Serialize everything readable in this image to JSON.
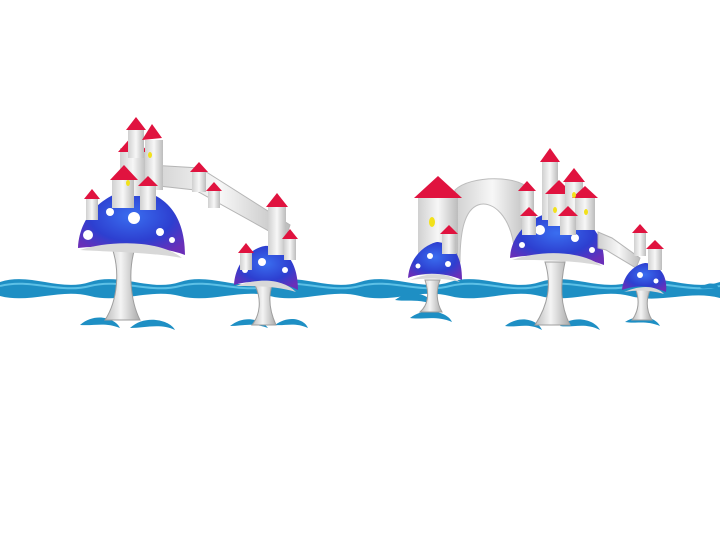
{
  "scene": {
    "description_label": "",
    "colors": {
      "background": "#ffffff",
      "water": "#1e8fc4",
      "water_light": "#5cc0e6",
      "cap_blue": "#2d3fd0",
      "cap_purple": "#6a2fb8",
      "roof_red": "#e0133f",
      "tower_white": "#f2f2f2",
      "tower_shade": "#c9c9c9",
      "window_yellow": "#f2e11a",
      "stem_grey": "#d6d6d6"
    },
    "icons": [
      "mushroom-castle-left",
      "mushroom-castle-center-left",
      "mushroom-castle-center",
      "mushroom-castle-right",
      "mushroom-castle-far-right",
      "water-waves"
    ]
  }
}
